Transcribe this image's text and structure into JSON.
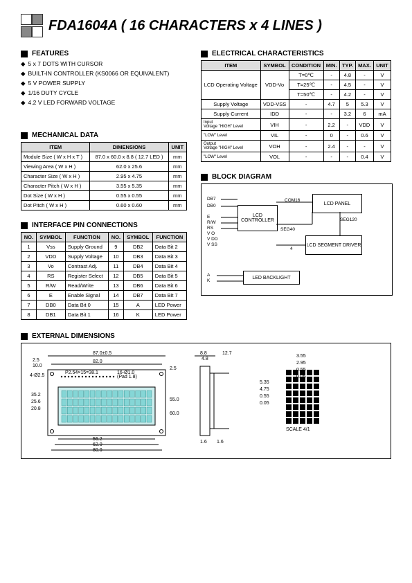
{
  "title": "FDA1604A ( 16  CHARACTERS x 4 LINES )",
  "sections": {
    "features": "FEATURES",
    "mechanical": "MECHANICAL DATA",
    "interface": "INTERFACE PIN CONNECTIONS",
    "electrical": "ELECTRICAL CHARACTERISTICS",
    "block": "BLOCK DIAGRAM",
    "external": "EXTERNAL DIMENSIONS"
  },
  "features": [
    "5 x 7 DOTS WITH CURSOR",
    "BUILT-IN CONTROLLER (KS0066 OR EQUIVALENT)",
    "5 V POWER SUPPLY",
    "1/16 DUTY CYCLE",
    "4.2 V LED FORWARD VOLTAGE"
  ],
  "mechanical": {
    "headers": [
      "ITEM",
      "DIMENSIONS",
      "UNIT"
    ],
    "rows": [
      [
        "Module Size ( W x H x T )",
        "87.0 x 60.0 x 8.8 ( 12.7 LED )",
        "mm"
      ],
      [
        "Viewing Area ( W x H )",
        "62.0 x 25.6",
        "mm"
      ],
      [
        "Character Size ( W x H )",
        "2.95 x 4.75",
        "mm"
      ],
      [
        "Character Pitch ( W x H )",
        "3.55 x 5.35",
        "mm"
      ],
      [
        "Dot Size ( W x H )",
        "0.55 x 0.55",
        "mm"
      ],
      [
        "Dot Pitch ( W x H )",
        "0.60 x 0.60",
        "mm"
      ]
    ]
  },
  "interface": {
    "headers": [
      "NO.",
      "SYMBOL",
      "FUNCTION",
      "NO.",
      "SYMBOL",
      "FUNCTION"
    ],
    "rows": [
      [
        "1",
        "Vss",
        "Supply Ground",
        "9",
        "DB2",
        "Data Bit 2"
      ],
      [
        "2",
        "VDD",
        "Supply Voltage",
        "10",
        "DB3",
        "Data Bit 3"
      ],
      [
        "3",
        "Vo",
        "Contrast Adj.",
        "11",
        "DB4",
        "Data Bit 4"
      ],
      [
        "4",
        "RS",
        "Register Select",
        "12",
        "DB5",
        "Data Bit 5"
      ],
      [
        "5",
        "R/W",
        "Read/Write",
        "13",
        "DB6",
        "Data Bit 6"
      ],
      [
        "6",
        "E",
        "Enable Signal",
        "14",
        "DB7",
        "Data Bit 7"
      ],
      [
        "7",
        "DB0",
        "Data Bit 0",
        "15",
        "A",
        "LED Power"
      ],
      [
        "8",
        "DB1",
        "Data Bit 1",
        "16",
        "K",
        "LED Power"
      ]
    ]
  },
  "electrical": {
    "headers": [
      "ITEM",
      "SYMBOL",
      "CONDITION",
      "MIN.",
      "TYP.",
      "MAX.",
      "UNIT"
    ],
    "rows": [
      {
        "item": "LCD Operating Voltage",
        "symbol": "VDD-Vo",
        "conds": [
          {
            "cond": "T=0℃",
            "min": "-",
            "typ": "4.8",
            "max": "-",
            "unit": "V"
          },
          {
            "cond": "T=25℃",
            "min": "-",
            "typ": "4.5",
            "max": "-",
            "unit": "V"
          },
          {
            "cond": "T=50℃",
            "min": "-",
            "typ": "4.2",
            "max": "-",
            "unit": "V"
          }
        ]
      },
      {
        "item": "Supply Voltage",
        "symbol": "VDD-VSS",
        "cond": "-",
        "min": "4.7",
        "typ": "5",
        "max": "5.3",
        "unit": "V"
      },
      {
        "item": "Supply Current",
        "symbol": "IDD",
        "cond": "-",
        "min": "-",
        "typ": "3.2",
        "max": "6",
        "unit": "mA"
      },
      {
        "item": "Input Voltage",
        "sub": "\"HIGH\" Level",
        "symbol": "VIH",
        "cond": "-",
        "min": "2.2",
        "typ": "-",
        "max": "VDD",
        "unit": "V"
      },
      {
        "item": "",
        "sub": "\"LOW\" Level",
        "symbol": "VIL",
        "cond": "-",
        "min": "0",
        "typ": "-",
        "max": "0.6",
        "unit": "V"
      },
      {
        "item": "Output Voltage",
        "sub": "\"HIGH\" Level",
        "symbol": "VOH",
        "cond": "-",
        "min": "2.4",
        "typ": "-",
        "max": "-",
        "unit": "V"
      },
      {
        "item": "",
        "sub": "\"LOW\" Level",
        "symbol": "VOL",
        "cond": "-",
        "min": "-",
        "typ": "-",
        "max": "0.4",
        "unit": "V"
      }
    ]
  },
  "blockdiag": {
    "labels": [
      "DB7",
      "DB0",
      "E",
      "R/W",
      "RS",
      "V O",
      "V DD",
      "V SS",
      "A",
      "K"
    ],
    "boxes": {
      "controller": "LCD CONTROLLER",
      "panel": "LCD PANEL",
      "driver": "LCD SEGMENT DRIVER",
      "backlight": "LED BACKLIGHT"
    },
    "wires": {
      "com": "COM16",
      "seg1": "SEG40",
      "seg2": "SEG120",
      "four": "4"
    }
  },
  "dimensions": {
    "d1": "87.0±0.5",
    "d2": "2.5",
    "d3": "10.0",
    "d4": "82.0",
    "d5": "P2.54×15=38.1",
    "d6": "16-Ø1.0",
    "d7": "(Pad 1.8)",
    "d8": "4-Ø2.5",
    "d9": "35.2",
    "d10": "25.6",
    "d11": "20.8",
    "d12": "56.2",
    "d13": "62.0",
    "d14": "80.0",
    "d15": "55.0",
    "d16": "60.0±0.5",
    "d17": "2.5",
    "d18": "8.8",
    "d19": "4.8",
    "d20": "12.7",
    "d21": "1.6",
    "d22": "1.6",
    "d23": "3.55",
    "d24": "2.95",
    "d25": "0.55",
    "d26": "0.05",
    "d27": "5.35",
    "d28": "4.75",
    "d29": "0.55",
    "d30": "0.05",
    "scale": "SCALE 4/1"
  },
  "colors": {
    "textColor": "#000000",
    "headerBg": "#dddddd",
    "cyan": "#00aaaa"
  }
}
